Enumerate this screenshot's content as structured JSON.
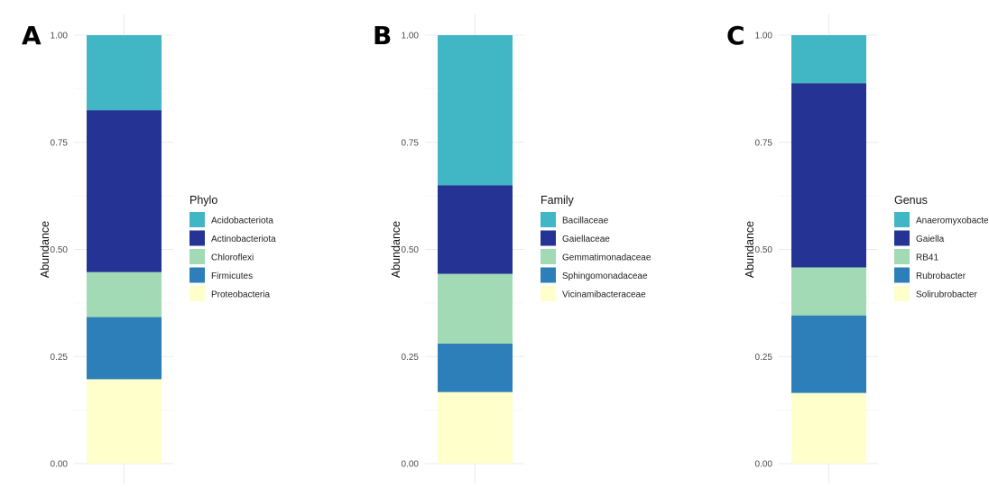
{
  "chart_data": [
    {
      "type": "bar",
      "stacked": true,
      "panel_label": "A",
      "xlabel": "",
      "ylabel": "Abundance",
      "ylim": [
        0,
        1
      ],
      "yticks": [
        "0.00",
        "0.25",
        "0.50",
        "0.75",
        "1.00"
      ],
      "grid": true,
      "legend_position": "right",
      "legend_title": "Phylo",
      "series": [
        {
          "name": "Acidobacteriota",
          "values": [
            0.175
          ],
          "color": "#41b6c4"
        },
        {
          "name": "Actinobacteriota",
          "values": [
            0.378
          ],
          "color": "#253494"
        },
        {
          "name": "Chloroflexi",
          "values": [
            0.105
          ],
          "color": "#a1dab4"
        },
        {
          "name": "Firmicutes",
          "values": [
            0.145
          ],
          "color": "#2c7fb8"
        },
        {
          "name": "Proteobacteria",
          "values": [
            0.197
          ],
          "color": "#ffffcc"
        }
      ]
    },
    {
      "type": "bar",
      "stacked": true,
      "panel_label": "B",
      "xlabel": "",
      "ylabel": "Abundance",
      "ylim": [
        0,
        1
      ],
      "yticks": [
        "0.00",
        "0.25",
        "0.50",
        "0.75",
        "1.00"
      ],
      "grid": true,
      "legend_position": "right",
      "legend_title": "Family",
      "series": [
        {
          "name": "Bacillaceae",
          "values": [
            0.35
          ],
          "color": "#41b6c4"
        },
        {
          "name": "Gaiellaceae",
          "values": [
            0.207
          ],
          "color": "#253494"
        },
        {
          "name": "Gemmatimonadaceae",
          "values": [
            0.163
          ],
          "color": "#a1dab4"
        },
        {
          "name": "Sphingomonadaceae",
          "values": [
            0.113
          ],
          "color": "#2c7fb8"
        },
        {
          "name": "Vicinamibacteraceae",
          "values": [
            0.167
          ],
          "color": "#ffffcc"
        }
      ]
    },
    {
      "type": "bar",
      "stacked": true,
      "panel_label": "C",
      "xlabel": "",
      "ylabel": "Abundance",
      "ylim": [
        0,
        1
      ],
      "yticks": [
        "0.00",
        "0.25",
        "0.50",
        "0.75",
        "1.00"
      ],
      "grid": true,
      "legend_position": "right",
      "legend_title": "Genus",
      "series": [
        {
          "name": "Anaeromyxobacter",
          "values": [
            0.112
          ],
          "color": "#41b6c4"
        },
        {
          "name": "Gaiella",
          "values": [
            0.43
          ],
          "color": "#253494"
        },
        {
          "name": "RB41",
          "values": [
            0.112
          ],
          "color": "#a1dab4"
        },
        {
          "name": "Rubrobacter",
          "values": [
            0.181
          ],
          "color": "#2c7fb8"
        },
        {
          "name": "Solirubrobacter",
          "values": [
            0.165
          ],
          "color": "#ffffcc"
        }
      ]
    }
  ]
}
